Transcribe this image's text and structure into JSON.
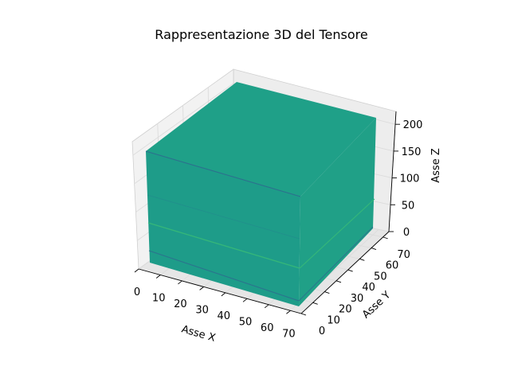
{
  "chart_data": {
    "type": "3d-voxel",
    "title": "Rappresentazione 3D del Tensore",
    "xlabel": "Asse X",
    "ylabel": "Asse Y",
    "zlabel": "Asse Z",
    "x_ticks": [
      0,
      10,
      20,
      30,
      40,
      50,
      60,
      70
    ],
    "y_ticks": [
      0,
      10,
      20,
      30,
      40,
      50,
      60,
      70
    ],
    "z_ticks": [
      0,
      50,
      100,
      150,
      200
    ],
    "xlim": [
      0,
      75
    ],
    "ylim": [
      0,
      75
    ],
    "zlim": [
      0,
      224
    ],
    "tensor_shape": [
      75,
      75,
      224
    ],
    "colormap": "viridis",
    "dominant_color": "#21a08a",
    "grid": true
  }
}
